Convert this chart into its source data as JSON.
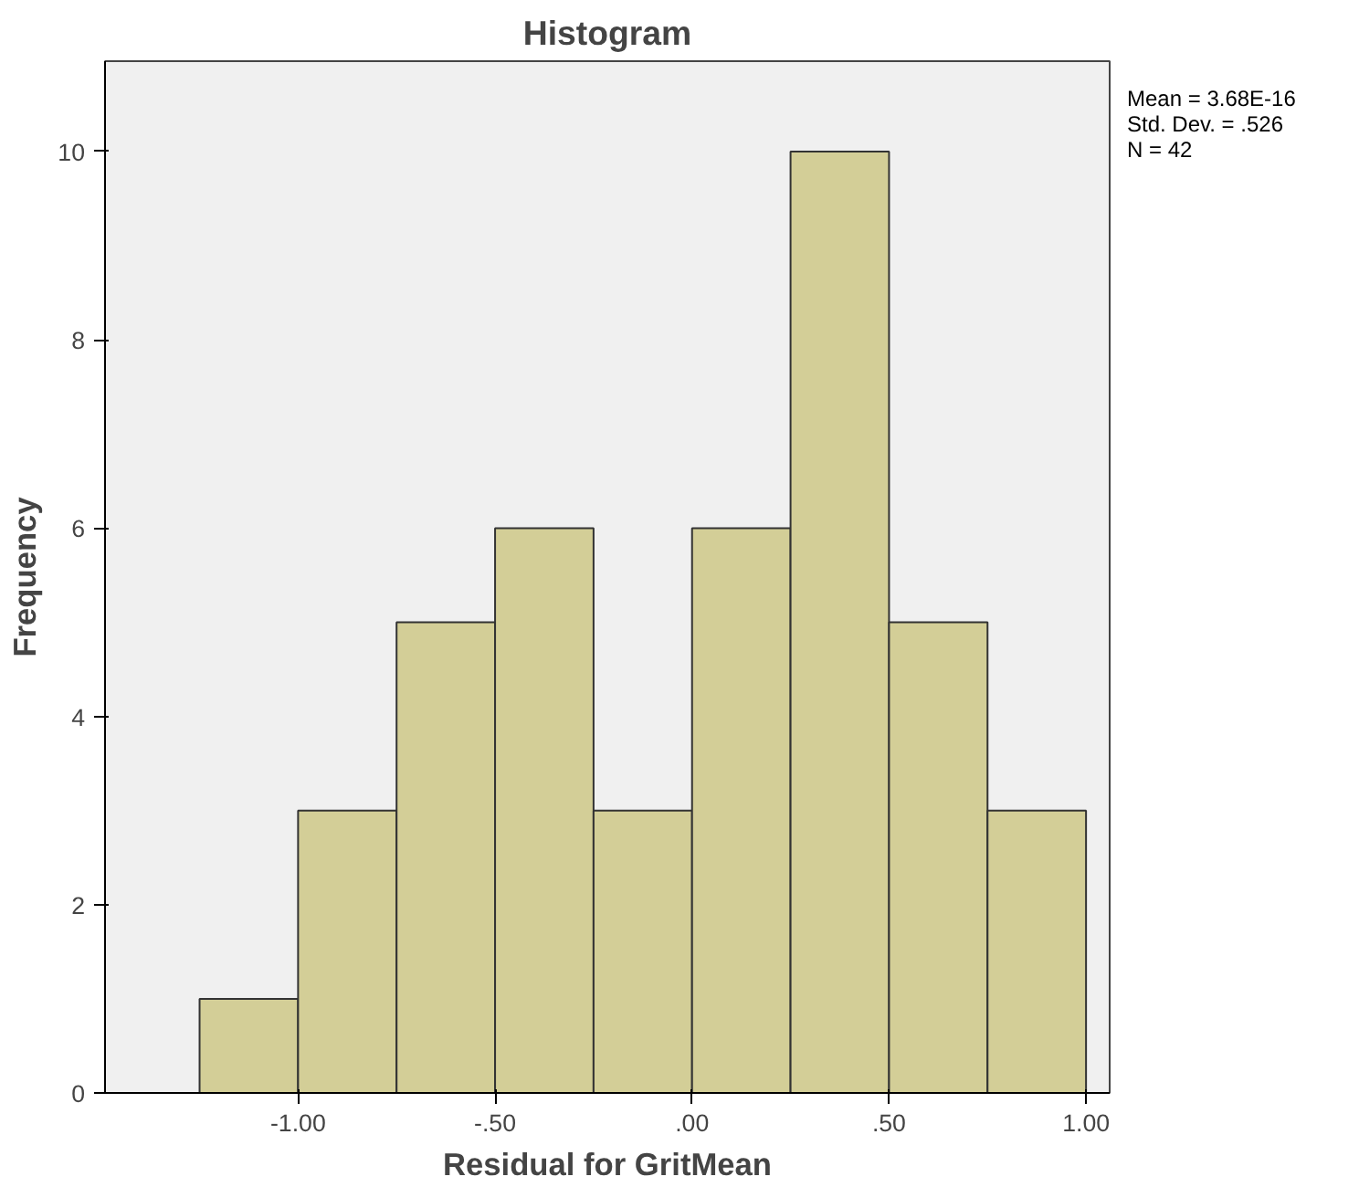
{
  "chart_data": {
    "type": "histogram",
    "title": "Histogram",
    "xlabel": "Residual for GritMean",
    "ylabel": "Frequency",
    "bins": [
      -1.25,
      -1.0,
      -0.75,
      -0.5,
      -0.25,
      0.0,
      0.25,
      0.5,
      0.75,
      1.0
    ],
    "values": [
      1,
      3,
      5,
      6,
      3,
      6,
      10,
      5,
      3
    ],
    "color": "#d3ce97",
    "xlim": [
      -1.49,
      1.06
    ],
    "ylim": [
      0,
      10.96
    ],
    "xticks": [
      {
        "value": -1.0,
        "label": "-1.00"
      },
      {
        "value": -0.5,
        "label": "-.50"
      },
      {
        "value": 0.0,
        "label": ".00"
      },
      {
        "value": 0.5,
        "label": ".50"
      },
      {
        "value": 1.0,
        "label": "1.00"
      }
    ],
    "yticks": [
      0,
      2,
      4,
      6,
      8,
      10
    ],
    "grid": false,
    "annotations": [
      "Mean = 3.68E-16",
      "Std. Dev. = .526",
      "N = 42"
    ]
  }
}
